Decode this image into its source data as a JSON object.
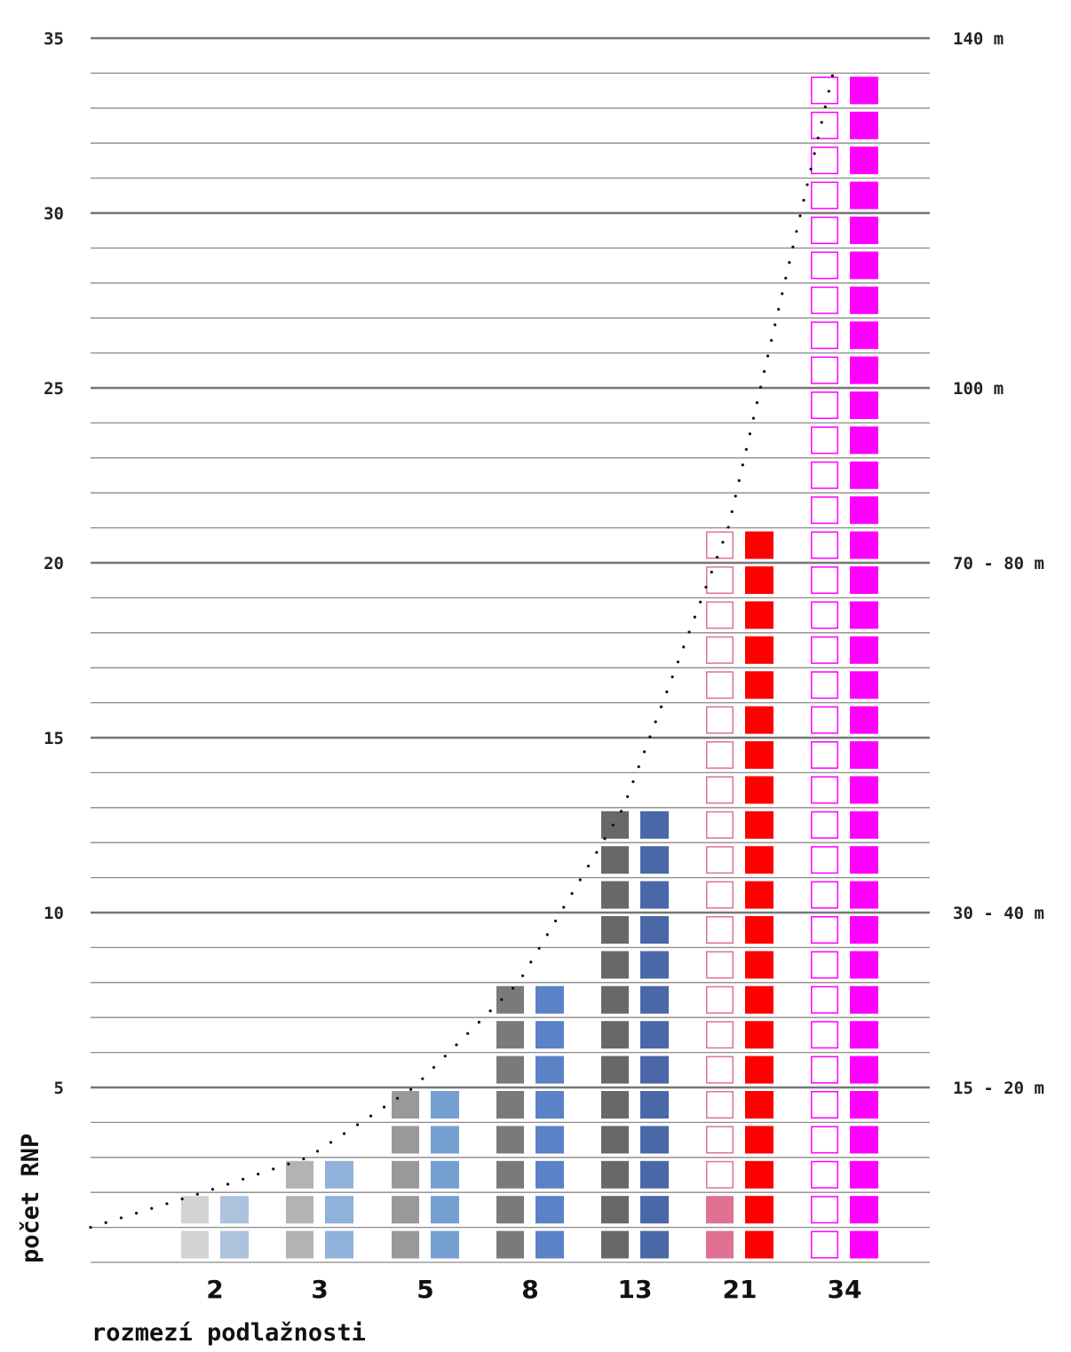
{
  "chart_data": {
    "type": "bar",
    "title": "",
    "xlabel": "rozmezí podlažnosti",
    "ylabel": "počet RNP",
    "ylim": [
      0,
      35
    ],
    "yticks": [
      5,
      10,
      15,
      20,
      25,
      30,
      35
    ],
    "grid": true,
    "categories": [
      "2",
      "3",
      "5",
      "8",
      "13",
      "21",
      "34"
    ],
    "right_axis_labels": [
      {
        "at": 5,
        "text": "15 - 20 m"
      },
      {
        "at": 10,
        "text": "30 - 40 m"
      },
      {
        "at": 20,
        "text": "70 - 80 m"
      },
      {
        "at": 25,
        "text": "100 m"
      },
      {
        "at": 35,
        "text": "140 m"
      }
    ],
    "series": [
      {
        "values": [
          2,
          3,
          5,
          8,
          13,
          21,
          34
        ],
        "fill": [
          "full",
          "full",
          "full",
          "full",
          "full",
          "partial",
          "outline"
        ],
        "filled_count": [
          2,
          3,
          5,
          8,
          13,
          2,
          0
        ],
        "colors": [
          "#d3d3d3",
          "#b3b3b3",
          "#999999",
          "#7a7a7a",
          "#686868",
          "#e07193",
          "#ff00ff"
        ]
      },
      {
        "values": [
          2,
          3,
          5,
          8,
          13,
          21,
          34
        ],
        "colors": [
          "#adc2dd",
          "#8fb1da",
          "#759fd1",
          "#5b81c7",
          "#4a68a8",
          "#ff0000",
          "#ff00ff"
        ]
      }
    ],
    "trend_line": {
      "style": "dotted",
      "points": [
        [
          1,
          1
        ],
        [
          2,
          2
        ],
        [
          3,
          3
        ],
        [
          5,
          5
        ],
        [
          8,
          8
        ],
        [
          13,
          13
        ],
        [
          21,
          21
        ],
        [
          34,
          34
        ]
      ]
    }
  }
}
